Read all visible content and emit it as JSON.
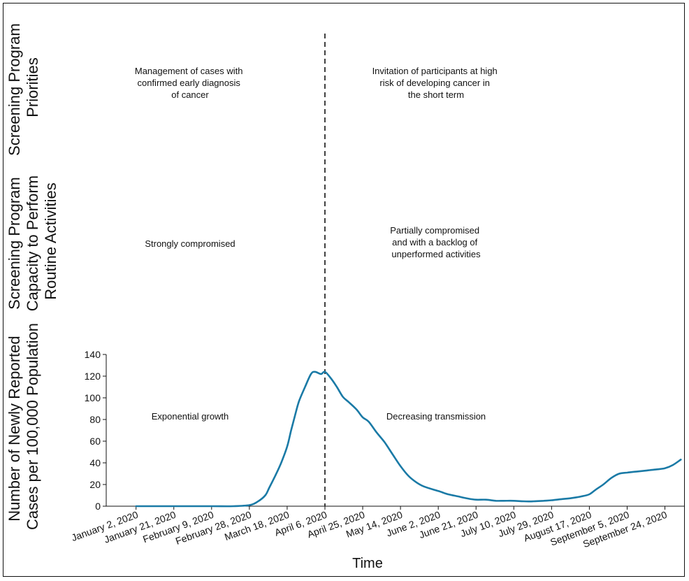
{
  "sections": {
    "priorities": {
      "title_lines": [
        "Screening Program",
        "Priorities"
      ],
      "left_text": [
        "Management of cases with",
        "confirmed early diagnosis",
        "of cancer"
      ],
      "right_text": [
        "Invitation of participants at high",
        "risk of developing cancer in",
        "the short term"
      ]
    },
    "capacity": {
      "title_lines": [
        "Screening Program",
        "Capacity to Perform",
        "Routine Activities"
      ],
      "left_text": [
        "Strongly compromised"
      ],
      "right_text": [
        "Partially compromised",
        "and with a backlog of",
        "unperformed activities"
      ]
    },
    "cases": {
      "title_lines": [
        "Number of Newly Reported",
        "Cases per 100,000 Population"
      ],
      "left_text": [
        "Exponential growth"
      ],
      "right_text": [
        "Decreasing transmission"
      ]
    }
  },
  "chart_data": {
    "type": "line",
    "title": "",
    "xlabel": "Time",
    "ylabel": "Number of Newly Reported Cases per 100,000 Population",
    "ylim": [
      0,
      140
    ],
    "yticks": [
      0,
      20,
      40,
      60,
      80,
      100,
      120,
      140
    ],
    "x_tick_labels": [
      "January 2, 2020",
      "January 21, 2020",
      "February 9, 2020",
      "February 28, 2020",
      "March 18, 2020",
      "April 6, 2020",
      "April 25, 2020",
      "May 14, 2020",
      "June 2, 2020",
      "June 21, 2020",
      "July 10, 2020",
      "July 29, 2020",
      "August 17, 2020",
      "September 5, 2020",
      "September 24, 2020"
    ],
    "x_tick_dates": [
      "2020-01-02",
      "2020-01-21",
      "2020-02-09",
      "2020-02-28",
      "2020-03-18",
      "2020-04-06",
      "2020-04-25",
      "2020-05-14",
      "2020-06-02",
      "2020-06-21",
      "2020-07-10",
      "2020-07-29",
      "2020-08-17",
      "2020-09-05",
      "2020-09-24"
    ],
    "xlim": [
      "2019-12-18",
      "2020-10-04"
    ],
    "divider_date": "2020-04-06",
    "grid": false,
    "line_color": "#1a7aa6",
    "series": [
      {
        "x": [
          "2020-01-02",
          "2020-01-21",
          "2020-02-09",
          "2020-02-20",
          "2020-02-28",
          "2020-03-03",
          "2020-03-07",
          "2020-03-09",
          "2020-03-12",
          "2020-03-15",
          "2020-03-18",
          "2020-03-20",
          "2020-03-22",
          "2020-03-24",
          "2020-03-27",
          "2020-03-30",
          "2020-04-01",
          "2020-04-04",
          "2020-04-06",
          "2020-04-09",
          "2020-04-12",
          "2020-04-15",
          "2020-04-18",
          "2020-04-22",
          "2020-04-25",
          "2020-04-28",
          "2020-05-02",
          "2020-05-06",
          "2020-05-10",
          "2020-05-14",
          "2020-05-18",
          "2020-05-22",
          "2020-05-26",
          "2020-06-02",
          "2020-06-07",
          "2020-06-12",
          "2020-06-17",
          "2020-06-21",
          "2020-06-26",
          "2020-07-01",
          "2020-07-05",
          "2020-07-10",
          "2020-07-15",
          "2020-07-20",
          "2020-07-25",
          "2020-07-29",
          "2020-08-03",
          "2020-08-08",
          "2020-08-13",
          "2020-08-17",
          "2020-08-20",
          "2020-08-24",
          "2020-08-28",
          "2020-09-01",
          "2020-09-05",
          "2020-09-10",
          "2020-09-15",
          "2020-09-20",
          "2020-09-24",
          "2020-09-28",
          "2020-10-02"
        ],
        "y": [
          0,
          0,
          0,
          0,
          1,
          4,
          10,
          17,
          28,
          40,
          55,
          70,
          84,
          97,
          110,
          122,
          124,
          122,
          124,
          118,
          110,
          101,
          96,
          89,
          82,
          78,
          68,
          59,
          48,
          37,
          28,
          22,
          18,
          14,
          11,
          9,
          7,
          6,
          6,
          5,
          5,
          5,
          4.5,
          4.5,
          5,
          5.5,
          6.5,
          7.5,
          9,
          11,
          15,
          20,
          26,
          30,
          31,
          32,
          33,
          34,
          35,
          38,
          43
        ]
      }
    ]
  }
}
